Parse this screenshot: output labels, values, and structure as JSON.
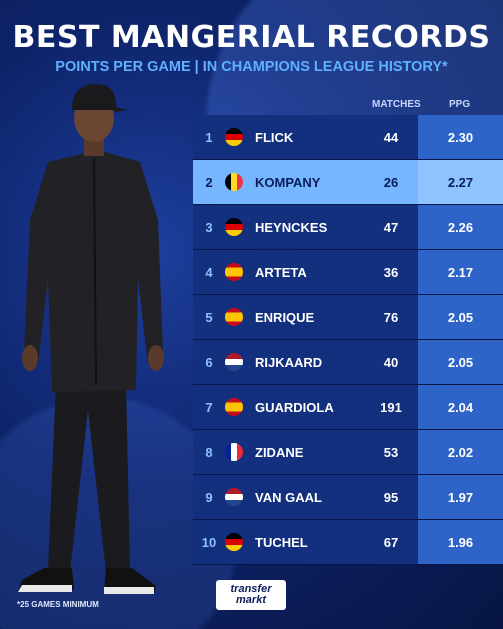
{
  "title": "BEST MANGERIAL RECORDS",
  "subtitle": "POINTS PER GAME | IN CHAMPIONS LEAGUE HISTORY*",
  "columns": {
    "matches": "MATCHES",
    "ppg": "PPG"
  },
  "rows": [
    {
      "rank": "1",
      "flag": "germany",
      "name": "FLICK",
      "matches": "44",
      "ppg": "2.30"
    },
    {
      "rank": "2",
      "flag": "belgium",
      "name": "KOMPANY",
      "matches": "26",
      "ppg": "2.27",
      "highlight": true
    },
    {
      "rank": "3",
      "flag": "germany",
      "name": "HEYNCKES",
      "matches": "47",
      "ppg": "2.26"
    },
    {
      "rank": "4",
      "flag": "spain",
      "name": "ARTETA",
      "matches": "36",
      "ppg": "2.17"
    },
    {
      "rank": "5",
      "flag": "spain",
      "name": "ENRIQUE",
      "matches": "76",
      "ppg": "2.05"
    },
    {
      "rank": "6",
      "flag": "netherlands",
      "name": "RIJKAARD",
      "matches": "40",
      "ppg": "2.05"
    },
    {
      "rank": "7",
      "flag": "spain",
      "name": "GUARDIOLA",
      "matches": "191",
      "ppg": "2.04"
    },
    {
      "rank": "8",
      "flag": "france",
      "name": "ZIDANE",
      "matches": "53",
      "ppg": "2.02"
    },
    {
      "rank": "9",
      "flag": "netherlands",
      "name": "VAN GAAL",
      "matches": "95",
      "ppg": "1.97"
    },
    {
      "rank": "10",
      "flag": "germany",
      "name": "TUCHEL",
      "matches": "67",
      "ppg": "1.96"
    }
  ],
  "footnote": "*25 GAMES MINIMUM",
  "logo": {
    "line1": "transfer",
    "line2": "markt"
  },
  "colors": {
    "accent": "#5fb1ff",
    "highlight": "#76b6ff",
    "row": "#13307e",
    "ppg_cell": "#2e63c8"
  }
}
